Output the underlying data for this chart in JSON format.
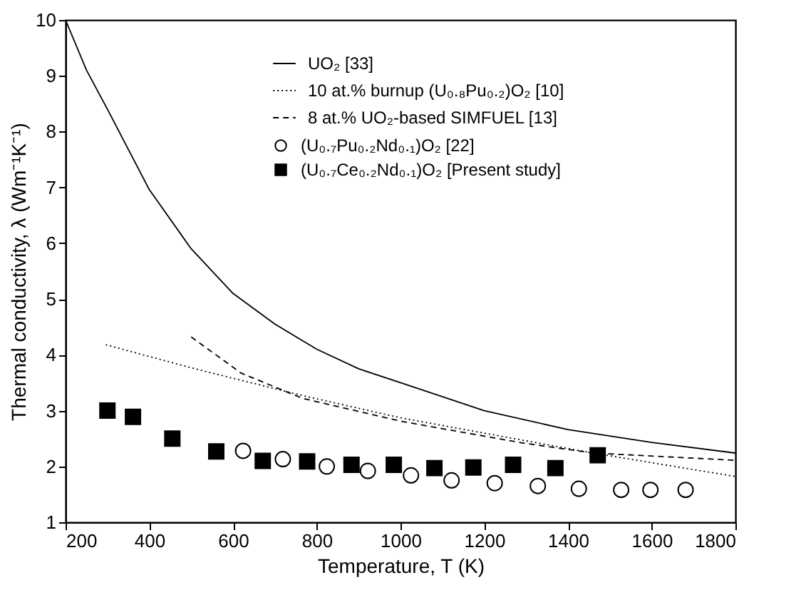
{
  "chart_data": {
    "type": "line",
    "xlabel": "Temperature, T (K)",
    "ylabel": "Thermal conductivity, λ (Wm⁻¹K⁻¹)",
    "xlim": [
      200,
      1800
    ],
    "ylim": [
      1,
      10
    ],
    "xticks": [
      200,
      400,
      600,
      800,
      1000,
      1200,
      1400,
      1600,
      1800
    ],
    "yticks": [
      1,
      2,
      3,
      4,
      5,
      6,
      7,
      8,
      9,
      10
    ],
    "grid": false,
    "legend": "top right",
    "series": [
      {
        "name": "UO₂ [33]",
        "line_style": "solid",
        "color": "#000000",
        "x": [
          200,
          250,
          300,
          400,
          500,
          600,
          700,
          800,
          900,
          1000,
          1200,
          1400,
          1600,
          1800
        ],
        "values": [
          10,
          9.1,
          8.4,
          6.96,
          5.9,
          5.1,
          4.55,
          4.1,
          3.75,
          3.5,
          3.0,
          2.66,
          2.43,
          2.24
        ]
      },
      {
        "name": "10 at.% burnup (U₀.₈Pu₀.₂)O₂ [10]",
        "line_style": "dotted",
        "color": "#000000",
        "x": [
          296,
          509,
          766,
          1001,
          1292,
          1460,
          1800
        ],
        "values": [
          4.18,
          3.75,
          3.27,
          2.87,
          2.47,
          2.24,
          1.82
        ]
      },
      {
        "name": "8 at.% UO₂-based SIMFUEL [13]",
        "line_style": "dashed",
        "color": "#000000",
        "x": [
          500,
          620,
          766,
          1001,
          1292,
          1460,
          1800
        ],
        "values": [
          4.32,
          3.67,
          3.22,
          2.81,
          2.42,
          2.24,
          2.11
        ]
      },
      {
        "name": "(U₀.₇Pu₀.₂Nd₀.₁)O₂ [22]",
        "type": "scatter",
        "marker": "circle",
        "color": "#000000",
        "x": [
          624,
          719,
          824,
          922,
          1025,
          1122,
          1225,
          1328,
          1426,
          1527,
          1597,
          1681
        ],
        "values": [
          2.28,
          2.13,
          2.0,
          1.92,
          1.84,
          1.75,
          1.7,
          1.65,
          1.6,
          1.58,
          1.58,
          1.58
        ]
      },
      {
        "name": "(U₀.₇Ce₀.₂Nd₀.₁)O₂ [Present study]",
        "type": "scatter",
        "marker": "square",
        "color": "#000000",
        "x": [
          300,
          361,
          455,
          560,
          671,
          777,
          883,
          984,
          1081,
          1174,
          1269,
          1370,
          1471
        ],
        "values": [
          3.0,
          2.89,
          2.5,
          2.27,
          2.1,
          2.09,
          2.03,
          2.03,
          1.97,
          1.98,
          2.03,
          1.97,
          2.2
        ]
      }
    ]
  }
}
